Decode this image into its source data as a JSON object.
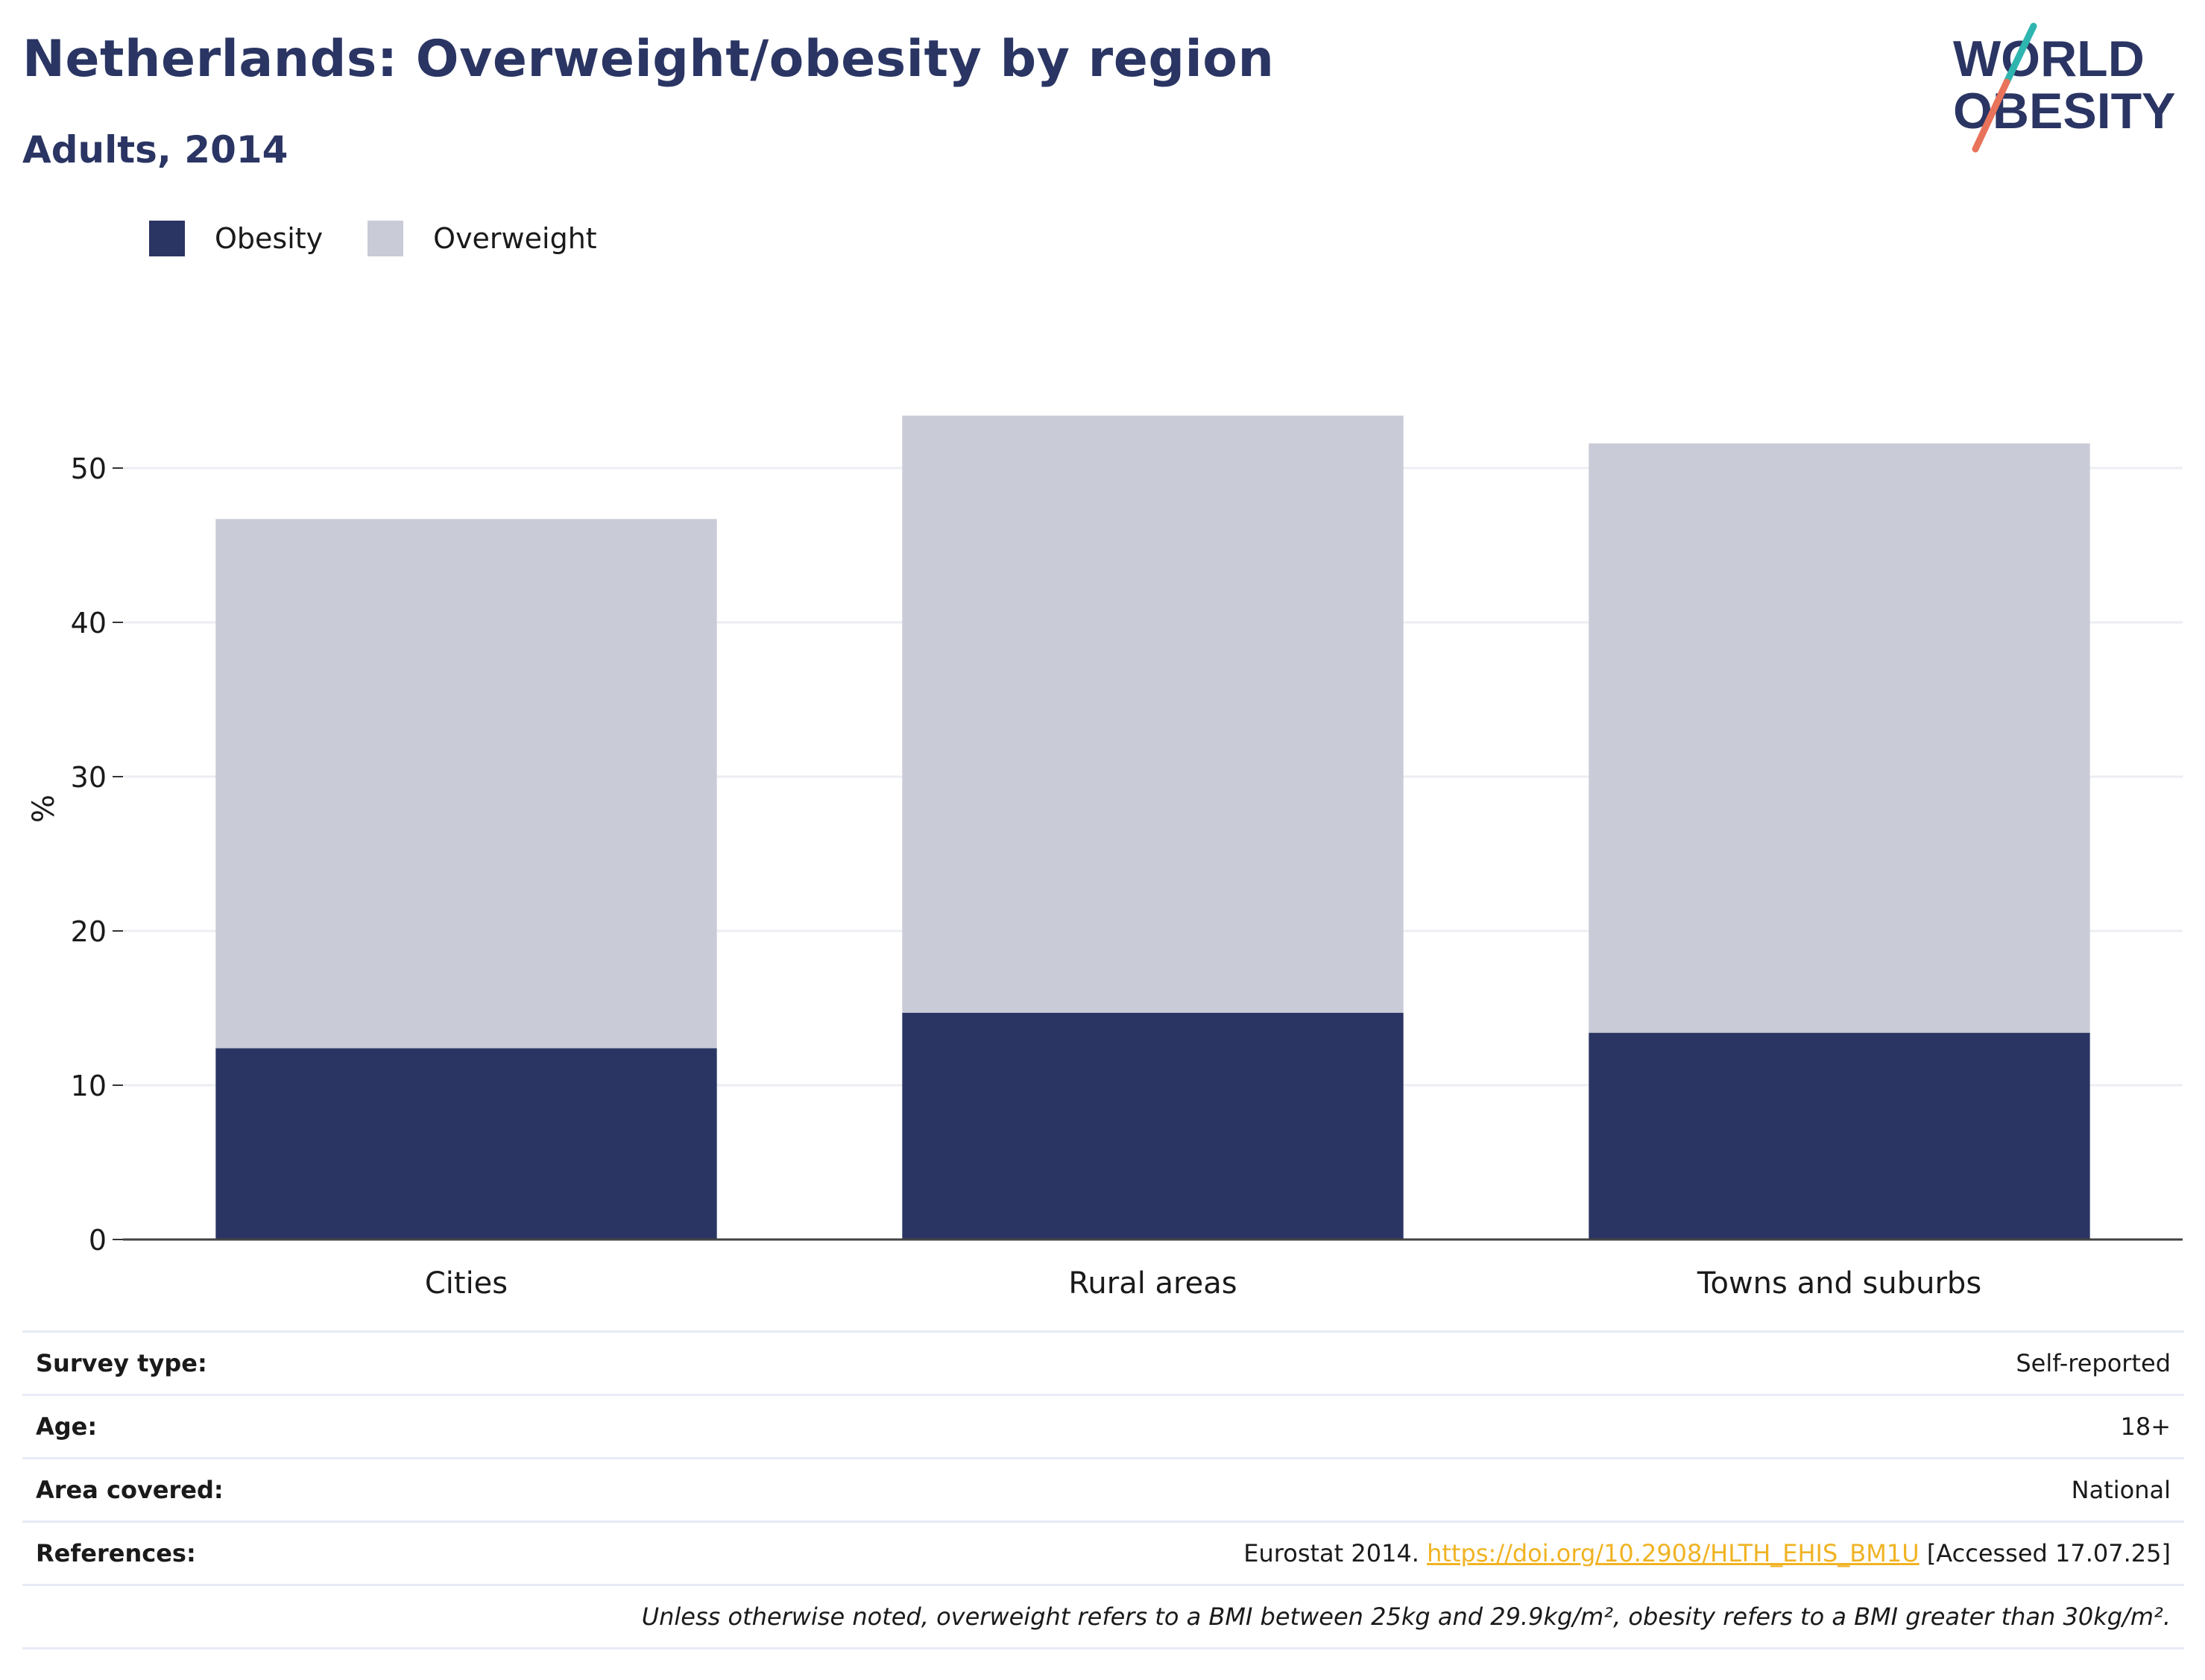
{
  "header": {
    "title": "Netherlands: Overweight/obesity by region",
    "subtitle": "Adults, 2014",
    "logo_text_line1": "WORLD",
    "logo_text_line2": "OBESITY"
  },
  "legend": {
    "items": [
      {
        "label": "Obesity",
        "color": "#2a3563"
      },
      {
        "label": "Overweight",
        "color": "#c9cbd7"
      }
    ]
  },
  "chart_data": {
    "type": "bar",
    "stacked": true,
    "categories": [
      "Cities",
      "Rural areas",
      "Towns and suburbs"
    ],
    "series": [
      {
        "name": "Obesity",
        "color": "#2a3563",
        "values": [
          12.4,
          14.7,
          13.4
        ]
      },
      {
        "name": "Overweight",
        "color": "#c9cbd7",
        "values": [
          34.3,
          38.7,
          38.2
        ]
      }
    ],
    "totals": [
      46.7,
      53.4,
      51.6
    ],
    "ylabel": "%",
    "ylim": [
      0,
      55
    ],
    "yticks": [
      0,
      10,
      20,
      30,
      40,
      50
    ],
    "grid": true,
    "legend_position": "top-left"
  },
  "info": {
    "rows": [
      {
        "label": "Survey type:",
        "value": "Self-reported"
      },
      {
        "label": "Age:",
        "value": "18+"
      },
      {
        "label": "Area covered:",
        "value": "National"
      }
    ],
    "references": {
      "label": "References:",
      "prefix": "Eurostat 2014. ",
      "link": "https://doi.org/10.2908/HLTH_EHIS_BM1U",
      "suffix": " [Accessed 17.07.25]"
    },
    "note": "Unless otherwise noted, overweight refers to a BMI between 25kg and 29.9kg/m², obesity refers to a BMI greater than 30kg/m²."
  }
}
